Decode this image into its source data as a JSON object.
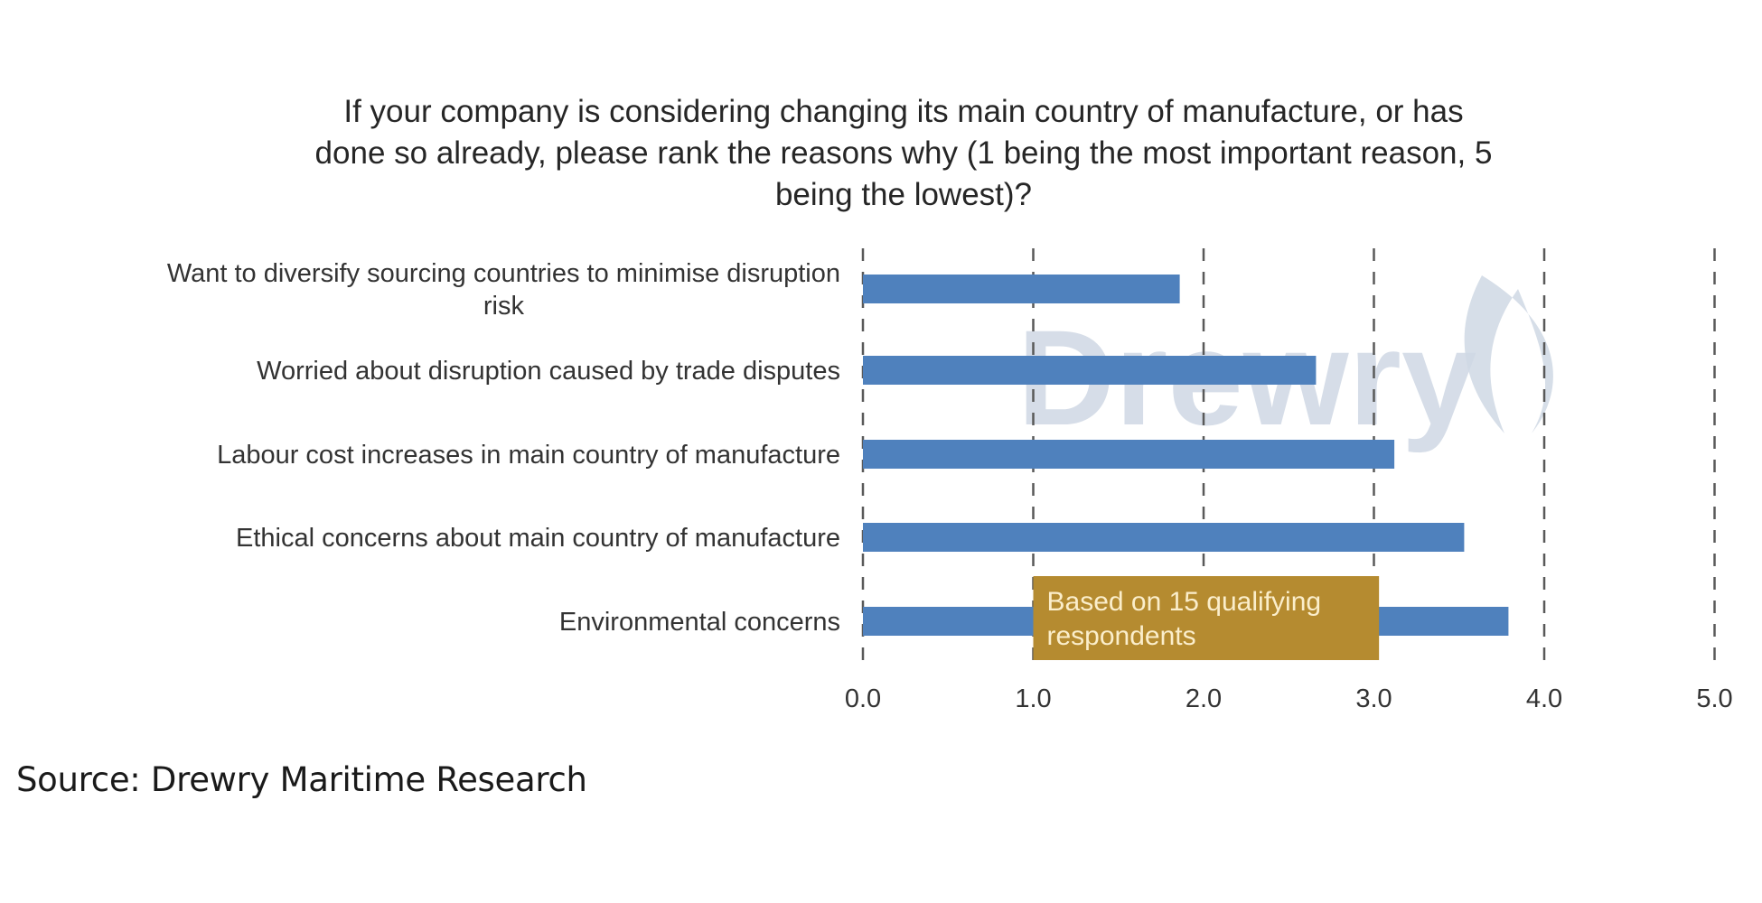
{
  "chart_data": {
    "type": "bar",
    "orientation": "horizontal",
    "title": "If your company is considering changing its main country of manufacture, or has done so already, please rank the reasons why (1 being the most important reason, 5 being the lowest)?",
    "title_lines": [
      "If your company is considering changing its main country of manufacture, or has",
      "done so already, please rank the reasons why (1 being the most important reason, 5",
      "being the lowest)?"
    ],
    "categories": [
      "Want to diversify sourcing countries to minimise disruption risk",
      "Worried about disruption caused by trade disputes",
      "Labour cost increases in main country of manufacture",
      "Ethical concerns about main country of manufacture",
      "Environmental concerns"
    ],
    "category_label_lines": [
      [
        "Want to diversify sourcing countries to minimise disruption",
        "risk"
      ],
      [
        "Worried about disruption caused by trade disputes"
      ],
      [
        "Labour cost increases in main country of manufacture"
      ],
      [
        "Ethical concerns about main country of manufacture"
      ],
      [
        "Environmental concerns"
      ]
    ],
    "values": [
      1.86,
      2.66,
      3.12,
      3.53,
      3.79
    ],
    "xlim": [
      0,
      5
    ],
    "xticks": [
      0,
      1,
      2,
      3,
      4,
      5
    ],
    "xtick_labels": [
      "0.0",
      "1.0",
      "2.0",
      "3.0",
      "4.0",
      "5.0"
    ],
    "xlabel": "",
    "ylabel": "",
    "grid": "vertical dashed",
    "legend": "none",
    "bar_color": "#4f81bd",
    "annotation": {
      "lines": [
        "Based on 15 qualifying",
        "respondents"
      ],
      "text": "Based on 15 qualifying respondents",
      "x_range": [
        1.0,
        3.03
      ],
      "background": "#b58b30"
    },
    "watermark": "Drewry"
  },
  "source": "Source: Drewry Maritime Research"
}
